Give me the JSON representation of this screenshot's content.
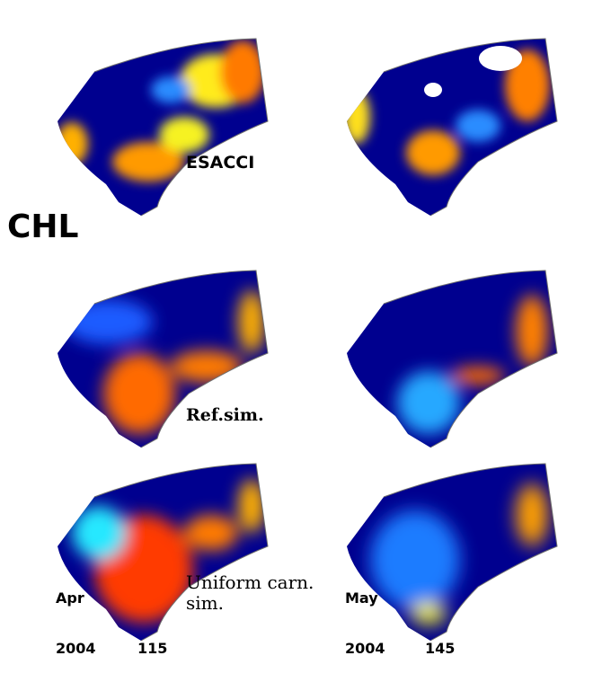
{
  "title": "CHL",
  "row_labels": [
    "ESACCI",
    "Ref.sim.",
    "Uniform carn.\nsim."
  ],
  "columns": [
    {
      "month": "Apr",
      "year": "2004",
      "day": "115"
    },
    {
      "month": "May",
      "year": "2004",
      "day": "145"
    }
  ],
  "colormap": {
    "low": "#00008f",
    "mid_low": "#1a5cff",
    "mid": "#25e8ff",
    "mid_high": "#f4f21c",
    "high": "#ff5a00",
    "max": "#a80000",
    "missing": "#ffffff",
    "coastline": "#6e6e6e"
  }
}
